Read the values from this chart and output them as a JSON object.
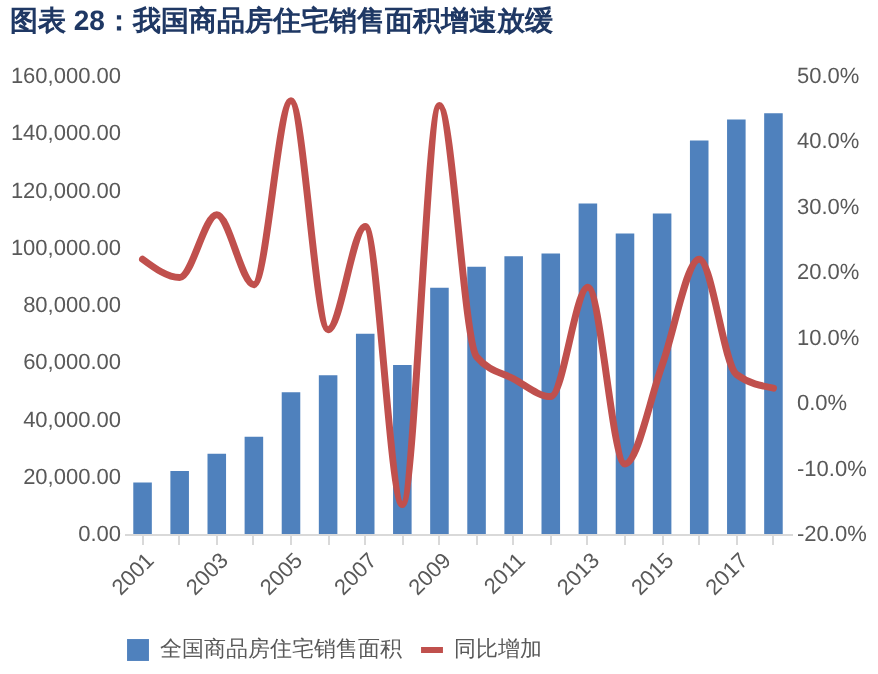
{
  "chart_data": {
    "type": "bar",
    "title": "图表 28：我国商品房住宅销售面积增速放缓",
    "categories": [
      "2001",
      null,
      "2003",
      null,
      "2005",
      null,
      "2007",
      null,
      "2009",
      null,
      "2011",
      null,
      "2013",
      null,
      "2015",
      null,
      "2017",
      null
    ],
    "series": [
      {
        "name": "全国商品房住宅销售面积",
        "color": "#4f81bd",
        "values": [
          18000,
          22000,
          28000,
          34000,
          49500,
          55500,
          70000,
          59000,
          86000,
          93400,
          97000,
          98000,
          115500,
          105000,
          112000,
          137500,
          144800,
          147000
        ]
      },
      {
        "name": "同比增加",
        "type": "line",
        "axis": "y2",
        "color": "#c0504d",
        "values": [
          22,
          19.2,
          28.8,
          18.1,
          46.2,
          11.2,
          27,
          -15.5,
          45.5,
          7.1,
          3.7,
          1,
          17.7,
          -9.3,
          5.8,
          22,
          4.4,
          2.3
        ]
      }
    ],
    "ylim": [
      0,
      160000
    ],
    "yticks": [
      {
        "value": 0,
        "label": "0.00"
      },
      {
        "value": 20000,
        "label": "20,000.00"
      },
      {
        "value": 40000,
        "label": "40,000.00"
      },
      {
        "value": 60000,
        "label": "60,000.00"
      },
      {
        "value": 80000,
        "label": "80,000.00"
      },
      {
        "value": 100000,
        "label": "100,000.00"
      },
      {
        "value": 120000,
        "label": "120,000.00"
      },
      {
        "value": 140000,
        "label": "140,000.00"
      },
      {
        "value": 160000,
        "label": "160,000.00"
      }
    ],
    "y2lim": [
      -20,
      50
    ],
    "y2ticks": [
      {
        "value": -20,
        "label": "-20.0%"
      },
      {
        "value": -10,
        "label": "-10.0%"
      },
      {
        "value": 0,
        "label": "0.0%"
      },
      {
        "value": 10,
        "label": "10.0%"
      },
      {
        "value": 20,
        "label": "20.0%"
      },
      {
        "value": 30,
        "label": "30.0%"
      },
      {
        "value": 40,
        "label": "40.0%"
      },
      {
        "value": 50,
        "label": "50.0%"
      }
    ],
    "grid": false,
    "legend": "bottom",
    "line_style": "solid",
    "marker": "none"
  }
}
